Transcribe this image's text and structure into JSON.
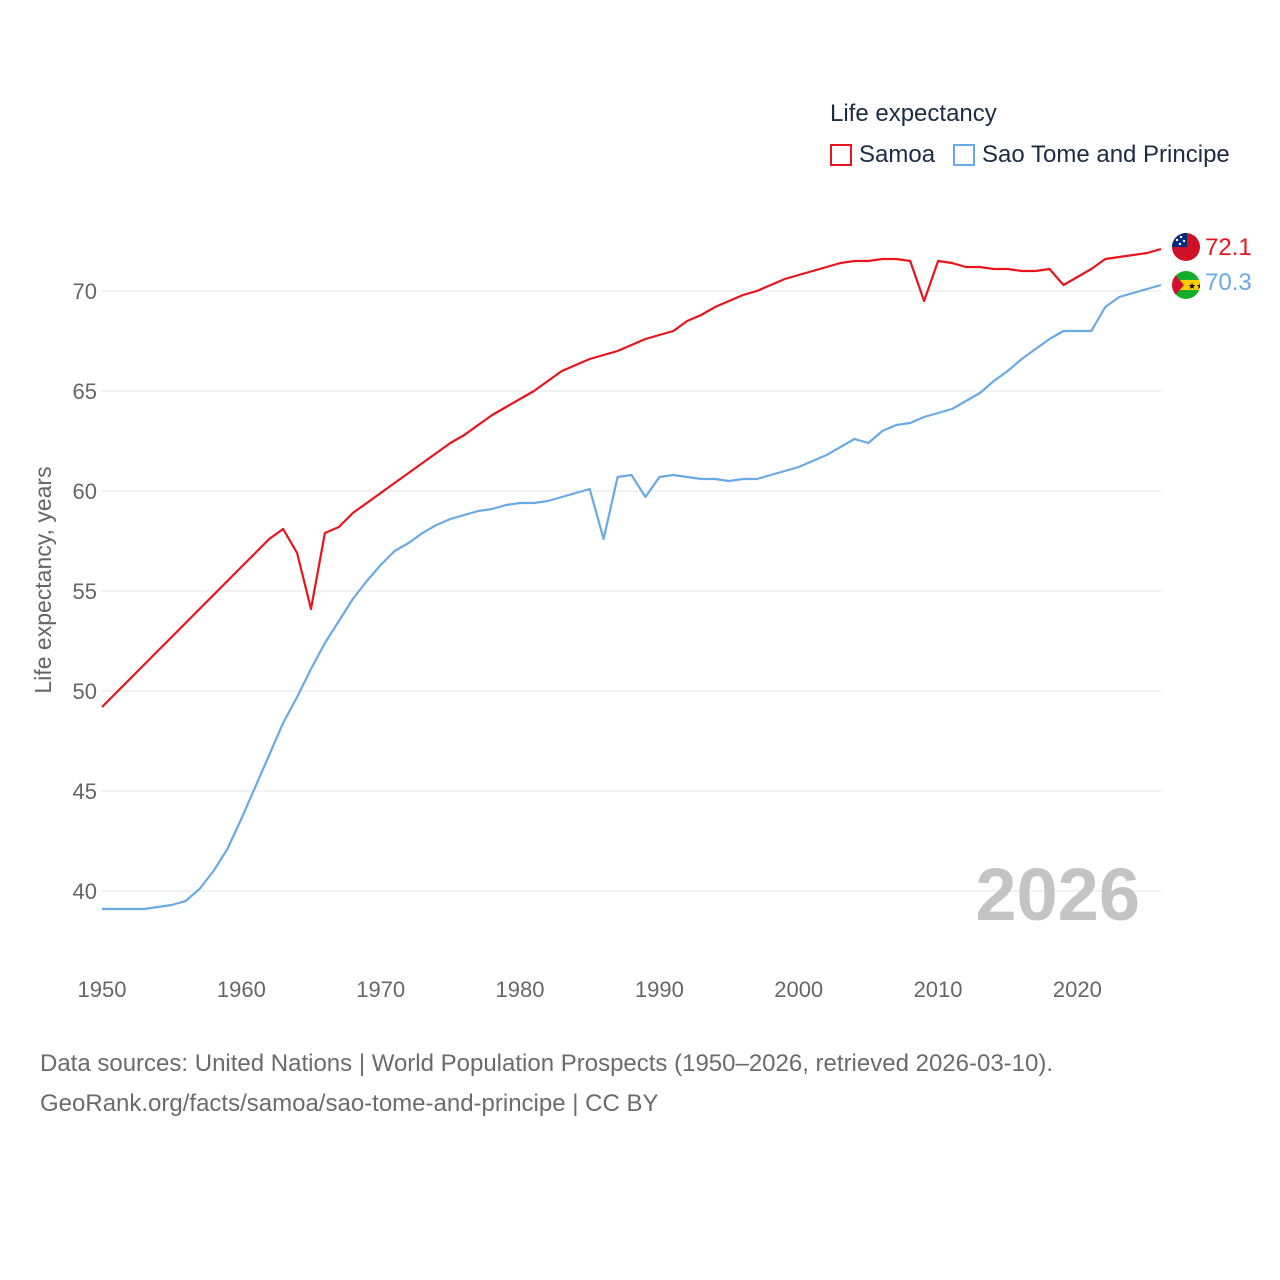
{
  "chart_data": {
    "type": "line",
    "title": "Life expectancy",
    "xlabel": "",
    "ylabel": "Life expectancy, years",
    "xlim": [
      1950,
      2026
    ],
    "ylim": [
      37.5,
      73
    ],
    "xticks": [
      1950,
      1960,
      1970,
      1980,
      1990,
      2000,
      2010,
      2020
    ],
    "yticks": [
      40,
      45,
      50,
      55,
      60,
      65,
      70
    ],
    "grid": true,
    "current_year_label": "2026",
    "legend": "top-right",
    "series": [
      {
        "name": "Samoa",
        "color": "#e8141c",
        "end_label": "72.1",
        "flag": "samoa-flag",
        "points": [
          [
            1950,
            49.2
          ],
          [
            1951,
            49.9
          ],
          [
            1952,
            50.6
          ],
          [
            1953,
            51.3
          ],
          [
            1954,
            52.0
          ],
          [
            1955,
            52.7
          ],
          [
            1956,
            53.4
          ],
          [
            1957,
            54.1
          ],
          [
            1958,
            54.8
          ],
          [
            1959,
            55.5
          ],
          [
            1960,
            56.2
          ],
          [
            1961,
            56.9
          ],
          [
            1962,
            57.6
          ],
          [
            1963,
            58.1
          ],
          [
            1964,
            56.9
          ],
          [
            1965,
            54.1
          ],
          [
            1966,
            57.9
          ],
          [
            1967,
            58.2
          ],
          [
            1968,
            58.9
          ],
          [
            1969,
            59.4
          ],
          [
            1970,
            59.9
          ],
          [
            1971,
            60.4
          ],
          [
            1972,
            60.9
          ],
          [
            1973,
            61.4
          ],
          [
            1974,
            61.9
          ],
          [
            1975,
            62.4
          ],
          [
            1976,
            62.8
          ],
          [
            1977,
            63.3
          ],
          [
            1978,
            63.8
          ],
          [
            1979,
            64.2
          ],
          [
            1980,
            64.6
          ],
          [
            1981,
            65.0
          ],
          [
            1982,
            65.5
          ],
          [
            1983,
            66.0
          ],
          [
            1984,
            66.3
          ],
          [
            1985,
            66.6
          ],
          [
            1986,
            66.8
          ],
          [
            1987,
            67.0
          ],
          [
            1988,
            67.3
          ],
          [
            1989,
            67.6
          ],
          [
            1990,
            67.8
          ],
          [
            1991,
            68.0
          ],
          [
            1992,
            68.5
          ],
          [
            1993,
            68.8
          ],
          [
            1994,
            69.2
          ],
          [
            1995,
            69.5
          ],
          [
            1996,
            69.8
          ],
          [
            1997,
            70.0
          ],
          [
            1998,
            70.3
          ],
          [
            1999,
            70.6
          ],
          [
            2000,
            70.8
          ],
          [
            2001,
            71.0
          ],
          [
            2002,
            71.2
          ],
          [
            2003,
            71.4
          ],
          [
            2004,
            71.5
          ],
          [
            2005,
            71.5
          ],
          [
            2006,
            71.6
          ],
          [
            2007,
            71.6
          ],
          [
            2008,
            71.5
          ],
          [
            2009,
            69.5
          ],
          [
            2010,
            71.5
          ],
          [
            2011,
            71.4
          ],
          [
            2012,
            71.2
          ],
          [
            2013,
            71.2
          ],
          [
            2014,
            71.1
          ],
          [
            2015,
            71.1
          ],
          [
            2016,
            71.0
          ],
          [
            2017,
            71.0
          ],
          [
            2018,
            71.1
          ],
          [
            2019,
            70.3
          ],
          [
            2020,
            70.7
          ],
          [
            2021,
            71.1
          ],
          [
            2022,
            71.6
          ],
          [
            2023,
            71.7
          ],
          [
            2024,
            71.8
          ],
          [
            2025,
            71.9
          ],
          [
            2026,
            72.1
          ]
        ]
      },
      {
        "name": "Sao Tome and Principe",
        "color": "#6aaae4",
        "end_label": "70.3",
        "flag": "sao-tome-flag",
        "points": [
          [
            1950,
            39.1
          ],
          [
            1951,
            39.1
          ],
          [
            1952,
            39.1
          ],
          [
            1953,
            39.1
          ],
          [
            1954,
            39.2
          ],
          [
            1955,
            39.3
          ],
          [
            1956,
            39.5
          ],
          [
            1957,
            40.1
          ],
          [
            1958,
            41.0
          ],
          [
            1959,
            42.1
          ],
          [
            1960,
            43.6
          ],
          [
            1961,
            45.2
          ],
          [
            1962,
            46.8
          ],
          [
            1963,
            48.4
          ],
          [
            1964,
            49.7
          ],
          [
            1965,
            51.1
          ],
          [
            1966,
            52.4
          ],
          [
            1967,
            53.5
          ],
          [
            1968,
            54.6
          ],
          [
            1969,
            55.5
          ],
          [
            1970,
            56.3
          ],
          [
            1971,
            57.0
          ],
          [
            1972,
            57.4
          ],
          [
            1973,
            57.9
          ],
          [
            1974,
            58.3
          ],
          [
            1975,
            58.6
          ],
          [
            1976,
            58.8
          ],
          [
            1977,
            59.0
          ],
          [
            1978,
            59.1
          ],
          [
            1979,
            59.3
          ],
          [
            1980,
            59.4
          ],
          [
            1981,
            59.4
          ],
          [
            1982,
            59.5
          ],
          [
            1983,
            59.7
          ],
          [
            1984,
            59.9
          ],
          [
            1985,
            60.1
          ],
          [
            1986,
            57.6
          ],
          [
            1987,
            60.7
          ],
          [
            1988,
            60.8
          ],
          [
            1989,
            59.7
          ],
          [
            1990,
            60.7
          ],
          [
            1991,
            60.8
          ],
          [
            1992,
            60.7
          ],
          [
            1993,
            60.6
          ],
          [
            1994,
            60.6
          ],
          [
            1995,
            60.5
          ],
          [
            1996,
            60.6
          ],
          [
            1997,
            60.6
          ],
          [
            1998,
            60.8
          ],
          [
            1999,
            61.0
          ],
          [
            2000,
            61.2
          ],
          [
            2001,
            61.5
          ],
          [
            2002,
            61.8
          ],
          [
            2003,
            62.2
          ],
          [
            2004,
            62.6
          ],
          [
            2005,
            62.4
          ],
          [
            2006,
            63.0
          ],
          [
            2007,
            63.3
          ],
          [
            2008,
            63.4
          ],
          [
            2009,
            63.7
          ],
          [
            2010,
            63.9
          ],
          [
            2011,
            64.1
          ],
          [
            2012,
            64.5
          ],
          [
            2013,
            64.9
          ],
          [
            2014,
            65.5
          ],
          [
            2015,
            66.0
          ],
          [
            2016,
            66.6
          ],
          [
            2017,
            67.1
          ],
          [
            2018,
            67.6
          ],
          [
            2019,
            68.0
          ],
          [
            2020,
            68.0
          ],
          [
            2021,
            68.0
          ],
          [
            2022,
            69.2
          ],
          [
            2023,
            69.7
          ],
          [
            2024,
            69.9
          ],
          [
            2025,
            70.1
          ],
          [
            2026,
            70.3
          ]
        ]
      }
    ]
  },
  "legend": {
    "title": "Life expectancy",
    "items": [
      "Samoa",
      "Sao Tome and Principe"
    ]
  },
  "footer": {
    "line1": "Data sources: United Nations | World Population Prospects (1950–2026, retrieved 2026-03-10).",
    "line2": "GeoRank.org/facts/samoa/sao-tome-and-principe | CC BY"
  },
  "colors": {
    "samoa": "#e8141c",
    "sao_tome": "#6aaae4",
    "grid": "#e6e6e6",
    "tick_text": "#666666"
  }
}
